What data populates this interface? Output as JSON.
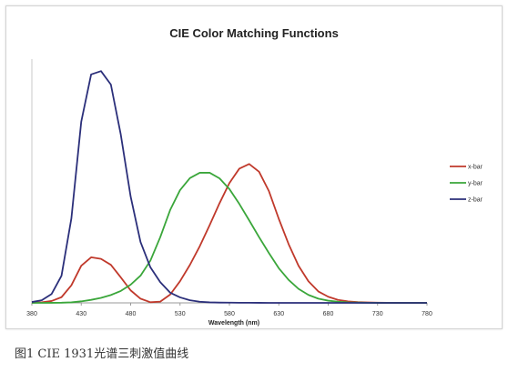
{
  "chart_data": {
    "type": "line",
    "title": "CIE Color Matching Functions",
    "xlabel": "Wavelength (nm)",
    "ylabel": "",
    "xlim": [
      380,
      780
    ],
    "ylim": [
      0,
      1.85
    ],
    "x_ticks": [
      "380",
      "430",
      "480",
      "530",
      "580",
      "630",
      "680",
      "730",
      "780"
    ],
    "grid": false,
    "legend_position": "right",
    "x": [
      380,
      390,
      400,
      410,
      420,
      430,
      440,
      450,
      460,
      470,
      480,
      490,
      500,
      510,
      520,
      530,
      540,
      550,
      560,
      570,
      580,
      590,
      600,
      610,
      620,
      630,
      640,
      650,
      660,
      670,
      680,
      690,
      700,
      710,
      720,
      730,
      740,
      750,
      760,
      770,
      780
    ],
    "series": [
      {
        "name": "x-bar",
        "color": "#c0392b",
        "values": [
          0.0014,
          0.0042,
          0.0143,
          0.0435,
          0.1344,
          0.2839,
          0.3483,
          0.3362,
          0.2908,
          0.1954,
          0.0956,
          0.032,
          0.0049,
          0.0093,
          0.0633,
          0.1655,
          0.2904,
          0.4334,
          0.5945,
          0.7621,
          0.9163,
          1.0263,
          1.0622,
          1.0026,
          0.8544,
          0.6424,
          0.4479,
          0.2835,
          0.1649,
          0.0874,
          0.0468,
          0.0227,
          0.0114,
          0.0058,
          0.0029,
          0.0014,
          0.0007,
          0.0003,
          0.0002,
          0.0001,
          0.0
        ]
      },
      {
        "name": "y-bar",
        "color": "#3aa63a",
        "values": [
          0.0,
          0.0001,
          0.0004,
          0.0012,
          0.004,
          0.0116,
          0.023,
          0.038,
          0.06,
          0.091,
          0.139,
          0.208,
          0.323,
          0.503,
          0.71,
          0.862,
          0.954,
          0.995,
          0.995,
          0.952,
          0.87,
          0.757,
          0.631,
          0.503,
          0.381,
          0.265,
          0.175,
          0.107,
          0.061,
          0.032,
          0.017,
          0.0082,
          0.0041,
          0.0021,
          0.001,
          0.0005,
          0.0002,
          0.0001,
          0.0001,
          0.0,
          0.0
        ]
      },
      {
        "name": "z-bar",
        "color": "#2b2f7a",
        "values": [
          0.0065,
          0.0201,
          0.0679,
          0.2074,
          0.6456,
          1.3856,
          1.7471,
          1.7721,
          1.6692,
          1.2876,
          0.813,
          0.4652,
          0.272,
          0.1582,
          0.0782,
          0.0422,
          0.0203,
          0.0087,
          0.0039,
          0.0021,
          0.0017,
          0.0011,
          0.0008,
          0.0003,
          0.0002,
          0.0,
          0.0,
          0.0,
          0.0,
          0.0,
          0.0,
          0.0,
          0.0,
          0.0,
          0.0,
          0.0,
          0.0,
          0.0,
          0.0,
          0.0,
          0.0
        ]
      }
    ]
  },
  "caption": "图1  CIE 1931光谱三刺激值曲线"
}
